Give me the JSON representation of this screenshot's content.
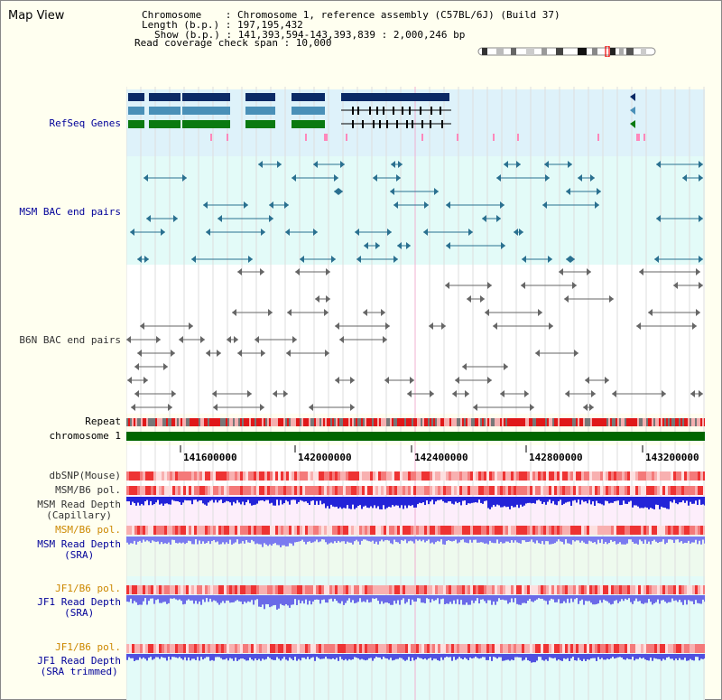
{
  "page": {
    "title": "Map View",
    "chromosome_line": "Chromosome    : Chromosome 1, reference assembly (C57BL/6J) (Build 37)",
    "length_line": "Length (b.p.) : 197,195,432",
    "show_line": "Show (b.p.) : 141,393,594-143,393,839 : 2,000,246 bp",
    "coverage_line": "Read coverage check span : 10,000"
  },
  "tracks": {
    "refseq": "RefSeq Genes",
    "msm_bac": "MSM BAC end pairs",
    "b6n_bac": "B6N BAC end pairs",
    "repeat": "Repeat",
    "chromosome": "chromosome 1",
    "dbsnp": "dbSNP(Mouse)",
    "msm_b6_pol_1": "MSM/B6 pol.",
    "msm_depth_cap": "MSM Read Depth\n(Capillary)",
    "msm_b6_pol_2": "MSM/B6 pol.",
    "msm_depth_sra": "MSM Read Depth\n(SRA)",
    "jf1_b6_pol_1": "JF1/B6 pol.",
    "jf1_depth_sra": "JF1 Read Depth\n(SRA)",
    "jf1_b6_pol_2": "JF1/B6 pol.",
    "jf1_depth_trim": "JF1 Read Depth\n(SRA trimmed)"
  },
  "axis": {
    "ticks": [
      "141600000",
      "142000000",
      "142400000",
      "142800000",
      "143200000"
    ]
  },
  "colors": {
    "label_blue": "#000099",
    "label_orange": "#cc8800",
    "refseq_bg": "#def2fa",
    "msm_bg": "#e3fbf8",
    "chromosome": "#006600",
    "depth_blue": "#2222dd"
  }
}
